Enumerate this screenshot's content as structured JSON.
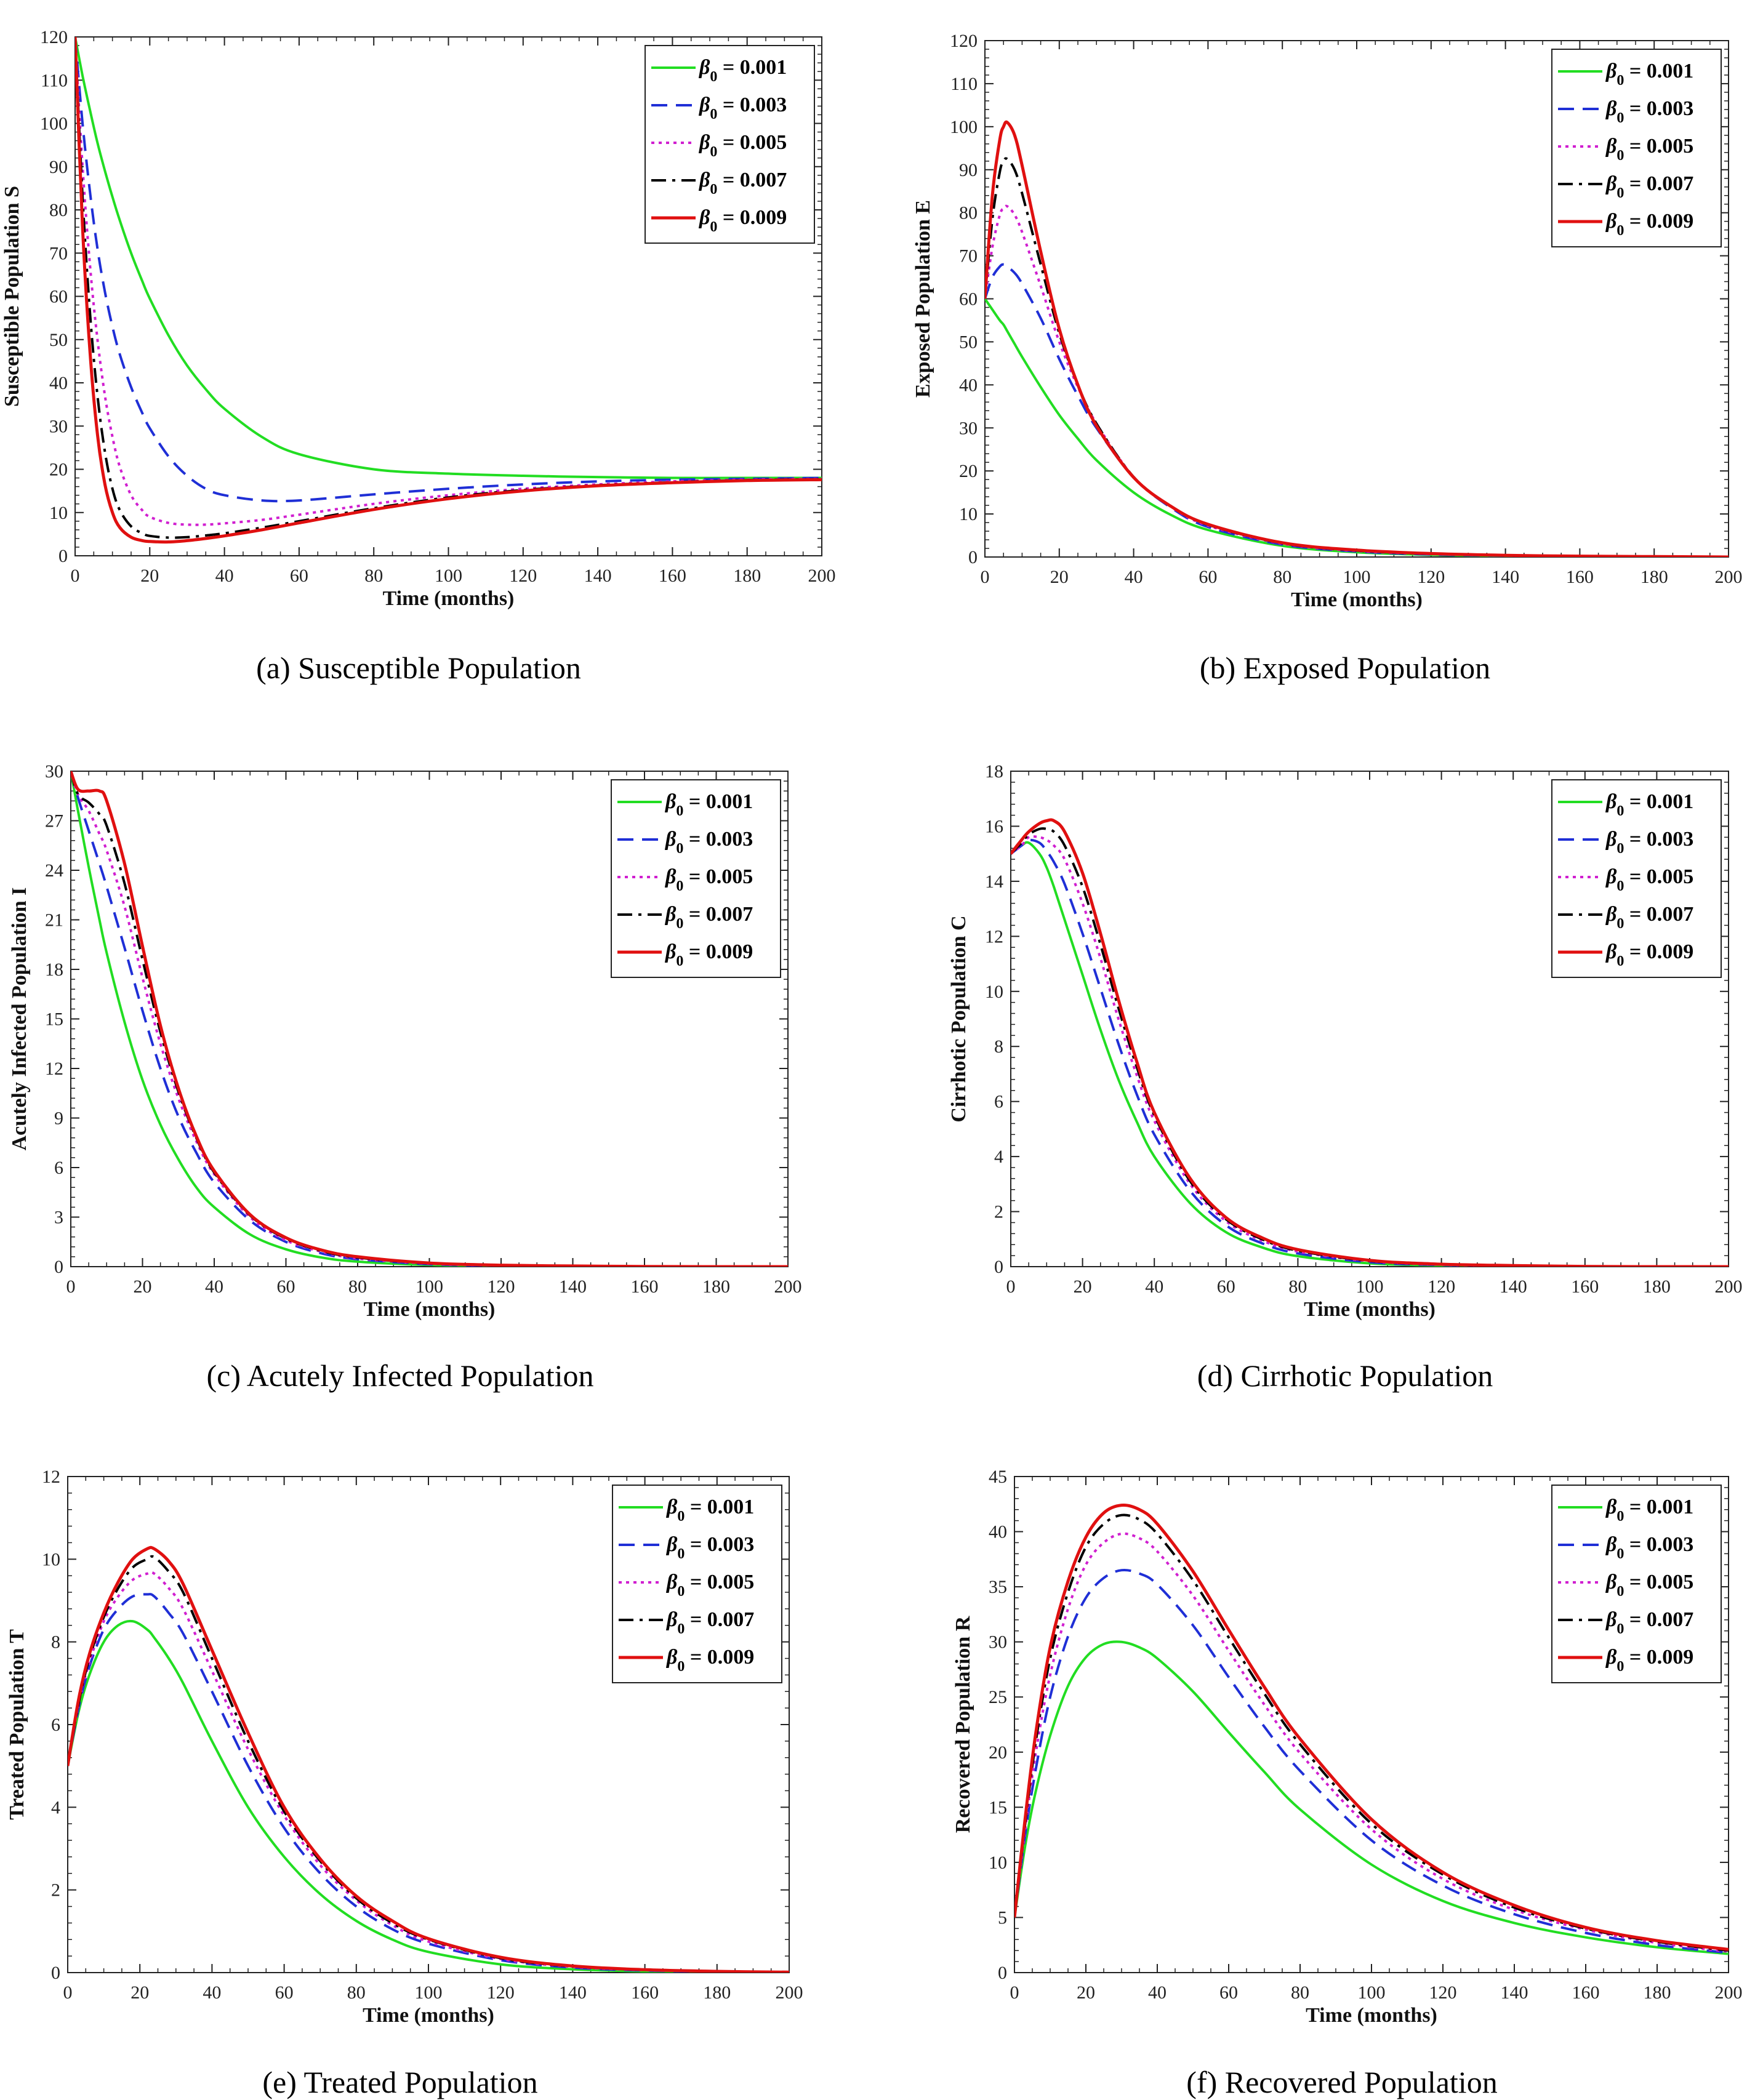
{
  "figure": {
    "legend_symbol": "β",
    "legend_subscript": "0",
    "styles": [
      {
        "beta": "0.001",
        "color": "#22dd22",
        "dash": ""
      },
      {
        "beta": "0.003",
        "color": "#1f2fd6",
        "dash": "dashed"
      },
      {
        "beta": "0.005",
        "color": "#d01fd0",
        "dash": "dotted"
      },
      {
        "beta": "0.007",
        "color": "#000000",
        "dash": "dashdot"
      },
      {
        "beta": "0.009",
        "color": "#e01010",
        "dash": ""
      }
    ]
  },
  "chart_data": [
    {
      "type": "line",
      "caption": "(a) Susceptible Population",
      "xlabel": "Time (months)",
      "ylabel": "Susceptible Population S",
      "xlim": [
        0,
        200
      ],
      "ylim": [
        0,
        120
      ],
      "xticks": [
        0,
        20,
        40,
        60,
        80,
        100,
        120,
        140,
        160,
        180,
        200
      ],
      "yticks": [
        0,
        10,
        20,
        30,
        40,
        50,
        60,
        70,
        80,
        90,
        100,
        110,
        120
      ],
      "legend_position": "top-right",
      "x": [
        0,
        2,
        4,
        6,
        8,
        10,
        12,
        15,
        18,
        20,
        25,
        30,
        35,
        40,
        50,
        60,
        80,
        100,
        120,
        140,
        160,
        180,
        200
      ],
      "series": [
        {
          "name": "β0 = 0.001",
          "values": [
            120,
            111,
            103,
            95.5,
            89,
            83,
            77.5,
            70,
            63.5,
            59.5,
            51,
            44,
            38.5,
            34,
            27.5,
            23.5,
            20,
            19,
            18.5,
            18.2,
            18,
            18,
            18
          ]
        },
        {
          "name": "β0 = 0.003",
          "values": [
            120,
            100,
            84,
            71,
            61,
            53,
            46.5,
            39,
            33,
            29.5,
            23,
            18.5,
            15.5,
            14,
            12.8,
            12.8,
            14.2,
            15.5,
            16.5,
            17.2,
            17.6,
            17.8,
            18
          ]
        },
        {
          "name": "β0 = 0.005",
          "values": [
            120,
            90,
            67,
            50,
            37,
            27.5,
            20.5,
            14,
            10.5,
            9,
            7.6,
            7.2,
            7.2,
            7.5,
            8.3,
            9.5,
            12,
            14,
            15.5,
            16.5,
            17.2,
            17.6,
            17.8
          ]
        },
        {
          "name": "β0 = 0.007",
          "values": [
            120,
            83,
            56,
            37,
            24,
            15.5,
            10.5,
            6.8,
            5.2,
            4.6,
            4.2,
            4.3,
            4.7,
            5.2,
            6.5,
            8,
            11,
            13.5,
            15.2,
            16.3,
            17,
            17.5,
            17.7
          ]
        },
        {
          "name": "β0 = 0.009",
          "values": [
            120,
            76,
            47,
            28,
            16.5,
            10,
            6.5,
            4.3,
            3.5,
            3.3,
            3.2,
            3.5,
            4,
            4.6,
            6,
            7.6,
            10.7,
            13.2,
            15,
            16.2,
            16.9,
            17.4,
            17.6
          ]
        }
      ]
    },
    {
      "type": "line",
      "caption": "(b) Exposed Population",
      "xlabel": "Time (months)",
      "ylabel": "Exposed Population E",
      "xlim": [
        0,
        200
      ],
      "ylim": [
        0,
        120
      ],
      "xticks": [
        0,
        20,
        40,
        60,
        80,
        100,
        120,
        140,
        160,
        180,
        200
      ],
      "yticks": [
        0,
        10,
        20,
        30,
        40,
        50,
        60,
        70,
        80,
        90,
        100,
        110,
        120
      ],
      "legend_position": "top-right",
      "x": [
        0,
        2,
        4,
        5,
        6,
        8,
        10,
        15,
        20,
        25,
        30,
        40,
        50,
        60,
        80,
        100,
        120,
        140,
        160,
        180,
        200
      ],
      "series": [
        {
          "name": "β0 = 0.001",
          "values": [
            60,
            57.5,
            55,
            54,
            52.5,
            49.5,
            46.5,
            39.5,
            33,
            27.5,
            22.5,
            15,
            9.8,
            6.3,
            2.6,
            1.1,
            0.5,
            0.25,
            0.1,
            0.05,
            0
          ]
        },
        {
          "name": "β0 = 0.003",
          "values": [
            60,
            65,
            67.5,
            68,
            67.5,
            66,
            63.5,
            55.5,
            46,
            37.5,
            30,
            18.5,
            11.5,
            7,
            2.9,
            1.3,
            0.6,
            0.3,
            0.15,
            0.05,
            0
          ]
        },
        {
          "name": "β0 = 0.005",
          "values": [
            60,
            72,
            79.5,
            81,
            81.5,
            79.5,
            75.5,
            63,
            50,
            39.5,
            31,
            18.6,
            11.7,
            7.3,
            3.1,
            1.4,
            0.7,
            0.35,
            0.2,
            0.1,
            0
          ]
        },
        {
          "name": "β0 = 0.007",
          "values": [
            60,
            78.5,
            89.5,
            92,
            92.5,
            90,
            84.5,
            68,
            52,
            40,
            31,
            18.6,
            11.8,
            7.5,
            3.2,
            1.5,
            0.75,
            0.4,
            0.2,
            0.1,
            0
          ]
        },
        {
          "name": "β0 = 0.009",
          "values": [
            60,
            84,
            97,
            100,
            101,
            98,
            91,
            71,
            53,
            40,
            30.5,
            18.5,
            11.8,
            7.6,
            3.3,
            1.6,
            0.8,
            0.4,
            0.2,
            0.1,
            0
          ]
        }
      ]
    },
    {
      "type": "line",
      "caption": "(c) Acutely Infected Population",
      "xlabel": "Time (months)",
      "ylabel": "Acutely Infected Population I",
      "xlim": [
        0,
        200
      ],
      "ylim": [
        0,
        30
      ],
      "xticks": [
        0,
        20,
        40,
        60,
        80,
        100,
        120,
        140,
        160,
        180,
        200
      ],
      "yticks": [
        0,
        3,
        6,
        9,
        12,
        15,
        18,
        21,
        24,
        27,
        30
      ],
      "legend_position": "top-right",
      "x": [
        0,
        2,
        5,
        8,
        10,
        15,
        20,
        25,
        30,
        35,
        40,
        50,
        60,
        70,
        80,
        100,
        120,
        140,
        160,
        180,
        200
      ],
      "series": [
        {
          "name": "β0 = 0.001",
          "values": [
            30,
            27.6,
            24.2,
            21,
            19,
            14.8,
            11.3,
            8.6,
            6.5,
            4.8,
            3.6,
            1.95,
            1.05,
            0.55,
            0.3,
            0.1,
            0.03,
            0.01,
            0,
            0,
            0
          ]
        },
        {
          "name": "β0 = 0.003",
          "values": [
            30,
            28.4,
            26.4,
            24.4,
            23,
            19.3,
            15.5,
            12,
            9.1,
            6.9,
            5.1,
            2.8,
            1.5,
            0.8,
            0.45,
            0.15,
            0.05,
            0.02,
            0,
            0,
            0
          ]
        },
        {
          "name": "β0 = 0.005",
          "values": [
            30,
            28.6,
            27.6,
            26.2,
            25.2,
            21.8,
            17.5,
            13.5,
            10.2,
            7.6,
            5.6,
            3,
            1.6,
            0.9,
            0.5,
            0.18,
            0.07,
            0.03,
            0.01,
            0,
            0
          ]
        },
        {
          "name": "β0 = 0.007",
          "values": [
            30,
            28.6,
            28.1,
            27.4,
            26.7,
            23.2,
            18.6,
            14.2,
            10.6,
            7.8,
            5.7,
            3.1,
            1.7,
            0.95,
            0.55,
            0.2,
            0.08,
            0.03,
            0.01,
            0,
            0
          ]
        },
        {
          "name": "β0 = 0.009",
          "values": [
            30,
            28.9,
            28.8,
            28.8,
            28.2,
            24.4,
            19.4,
            14.6,
            10.8,
            7.9,
            5.8,
            3.15,
            1.75,
            1,
            0.6,
            0.22,
            0.09,
            0.04,
            0.01,
            0,
            0
          ]
        }
      ]
    },
    {
      "type": "line",
      "caption": "(d) Cirrhotic Population",
      "xlabel": "Time (months)",
      "ylabel": "Cirrhotic Population C",
      "xlim": [
        0,
        200
      ],
      "ylim": [
        0,
        18
      ],
      "xticks": [
        0,
        20,
        40,
        60,
        80,
        100,
        120,
        140,
        160,
        180,
        200
      ],
      "yticks": [
        0,
        2,
        4,
        6,
        8,
        10,
        12,
        14,
        16,
        18
      ],
      "legend_position": "top-right",
      "x": [
        0,
        3,
        5,
        8,
        10,
        12,
        15,
        20,
        25,
        30,
        35,
        40,
        50,
        60,
        70,
        80,
        100,
        120,
        140,
        160,
        180,
        200
      ],
      "series": [
        {
          "name": "β0 = 0.001",
          "values": [
            15,
            15.3,
            15.4,
            15,
            14.5,
            13.8,
            12.6,
            10.6,
            8.6,
            6.8,
            5.3,
            4,
            2.3,
            1.25,
            0.7,
            0.38,
            0.12,
            0.04,
            0.01,
            0,
            0,
            0
          ]
        },
        {
          "name": "β0 = 0.003",
          "values": [
            15,
            15.3,
            15.5,
            15.4,
            15.1,
            14.7,
            13.9,
            12.1,
            10.1,
            8.1,
            6.3,
            4.8,
            2.75,
            1.5,
            0.85,
            0.48,
            0.16,
            0.06,
            0.02,
            0.01,
            0,
            0
          ]
        },
        {
          "name": "β0 = 0.005",
          "values": [
            15,
            15.3,
            15.6,
            15.6,
            15.5,
            15.3,
            14.8,
            13.2,
            11.2,
            9,
            7,
            5.3,
            3,
            1.65,
            0.95,
            0.55,
            0.2,
            0.07,
            0.03,
            0.01,
            0,
            0
          ]
        },
        {
          "name": "β0 = 0.007",
          "values": [
            15,
            15.4,
            15.7,
            15.9,
            15.9,
            15.8,
            15.3,
            13.8,
            11.7,
            9.4,
            7.3,
            5.5,
            3.1,
            1.72,
            1,
            0.58,
            0.21,
            0.08,
            0.03,
            0.01,
            0,
            0
          ]
        },
        {
          "name": "β0 = 0.009",
          "values": [
            15,
            15.5,
            15.8,
            16.1,
            16.2,
            16.2,
            15.8,
            14.3,
            12.1,
            9.7,
            7.5,
            5.6,
            3.2,
            1.78,
            1.05,
            0.62,
            0.23,
            0.09,
            0.04,
            0.01,
            0,
            0
          ]
        }
      ]
    },
    {
      "type": "line",
      "caption": "(e) Treated Population",
      "xlabel": "Time (months)",
      "ylabel": "Treated Population T",
      "xlim": [
        0,
        200
      ],
      "ylim": [
        0,
        12
      ],
      "xticks": [
        0,
        20,
        40,
        60,
        80,
        100,
        120,
        140,
        160,
        180,
        200
      ],
      "yticks": [
        0,
        2,
        4,
        6,
        8,
        10,
        12
      ],
      "legend_position": "top-right",
      "x": [
        0,
        3,
        6,
        10,
        14,
        18,
        22,
        24,
        28,
        32,
        40,
        50,
        60,
        70,
        80,
        90,
        100,
        120,
        140,
        160,
        180,
        200
      ],
      "series": [
        {
          "name": "β0 = 0.001",
          "values": [
            5,
            6.3,
            7.2,
            8,
            8.4,
            8.5,
            8.3,
            8.1,
            7.6,
            7,
            5.6,
            4,
            2.8,
            1.9,
            1.25,
            0.8,
            0.5,
            0.2,
            0.08,
            0.03,
            0.01,
            0
          ]
        },
        {
          "name": "β0 = 0.003",
          "values": [
            5,
            6.4,
            7.4,
            8.3,
            8.8,
            9.1,
            9.15,
            9.1,
            8.7,
            8.2,
            6.8,
            5,
            3.5,
            2.4,
            1.6,
            1.05,
            0.7,
            0.3,
            0.12,
            0.05,
            0.02,
            0.01
          ]
        },
        {
          "name": "β0 = 0.005",
          "values": [
            5,
            6.5,
            7.5,
            8.5,
            9.1,
            9.5,
            9.65,
            9.65,
            9.3,
            8.8,
            7.3,
            5.4,
            3.8,
            2.6,
            1.75,
            1.15,
            0.75,
            0.33,
            0.14,
            0.06,
            0.03,
            0.01
          ]
        },
        {
          "name": "β0 = 0.007",
          "values": [
            5,
            6.5,
            7.6,
            8.6,
            9.3,
            9.8,
            10,
            10.05,
            9.7,
            9.2,
            7.6,
            5.6,
            3.9,
            2.7,
            1.8,
            1.2,
            0.8,
            0.35,
            0.15,
            0.07,
            0.03,
            0.01
          ]
        },
        {
          "name": "β0 = 0.009",
          "values": [
            5,
            6.6,
            7.7,
            8.7,
            9.45,
            10,
            10.25,
            10.25,
            9.95,
            9.4,
            7.8,
            5.8,
            4,
            2.75,
            1.85,
            1.25,
            0.82,
            0.37,
            0.16,
            0.07,
            0.03,
            0.01
          ]
        }
      ]
    },
    {
      "type": "line",
      "caption": "(f) Recovered Population",
      "xlabel": "Time (months)",
      "ylabel": "Recovered Population R",
      "xlim": [
        0,
        200
      ],
      "ylim": [
        0,
        45
      ],
      "xticks": [
        0,
        20,
        40,
        60,
        80,
        100,
        120,
        140,
        160,
        180,
        200
      ],
      "yticks": [
        0,
        5,
        10,
        15,
        20,
        25,
        30,
        35,
        40,
        45
      ],
      "legend_position": "top-right",
      "x": [
        0,
        3,
        6,
        10,
        15,
        20,
        25,
        30,
        35,
        40,
        50,
        60,
        70,
        80,
        100,
        120,
        140,
        160,
        180,
        200
      ],
      "series": [
        {
          "name": "β0 = 0.001",
          "values": [
            5,
            11.5,
            16.5,
            21.5,
            26,
            28.6,
            29.8,
            30,
            29.5,
            28.5,
            25.5,
            21.8,
            18.2,
            14.8,
            9.8,
            6.5,
            4.5,
            3.2,
            2.3,
            1.7
          ]
        },
        {
          "name": "β0 = 0.003",
          "values": [
            5,
            12.5,
            18.5,
            25,
            30.5,
            34,
            35.8,
            36.5,
            36.2,
            35.2,
            31.5,
            26.8,
            22.3,
            18.3,
            12,
            7.9,
            5.3,
            3.6,
            2.5,
            1.8
          ]
        },
        {
          "name": "β0 = 0.005",
          "values": [
            5,
            13,
            20,
            27,
            33,
            37,
            39,
            39.8,
            39.4,
            38.2,
            34.2,
            29.2,
            24.3,
            19.9,
            13,
            8.5,
            5.7,
            3.9,
            2.7,
            1.9
          ]
        },
        {
          "name": "β0 = 0.007",
          "values": [
            5,
            13.5,
            21,
            28.5,
            34.5,
            38.6,
            40.7,
            41.5,
            41.1,
            39.8,
            35.6,
            30.4,
            25.3,
            20.7,
            13.5,
            8.9,
            5.9,
            4,
            2.8,
            2
          ]
        },
        {
          "name": "β0 = 0.009",
          "values": [
            5,
            14,
            21.8,
            29.5,
            35.5,
            39.5,
            41.7,
            42.4,
            42,
            40.7,
            36.4,
            31.1,
            25.9,
            21.2,
            13.9,
            9.1,
            6.1,
            4.1,
            2.9,
            2.1
          ]
        }
      ]
    }
  ]
}
